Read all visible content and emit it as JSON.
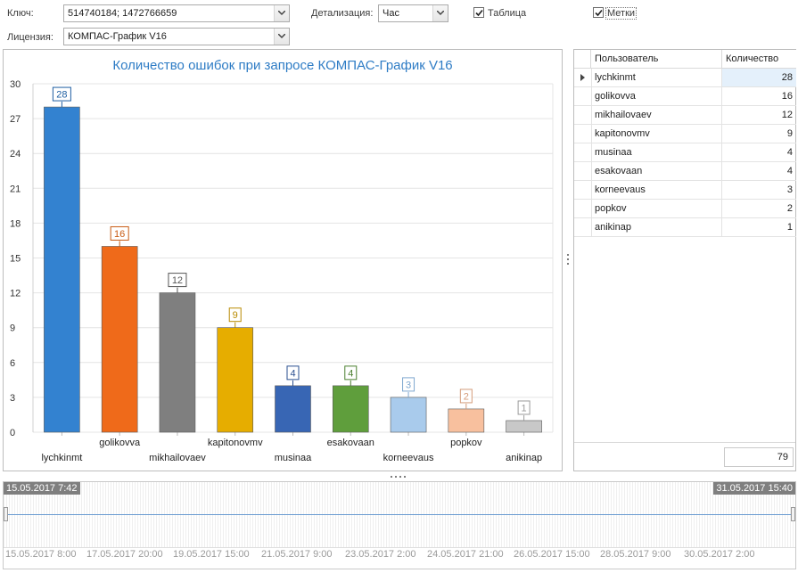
{
  "filters": {
    "key_label": "Ключ:",
    "key_value": "514740184; 1472766659",
    "detail_label": "Детализация:",
    "detail_value": "Час",
    "table_label": "Таблица",
    "table_checked": true,
    "marks_label": "Метки",
    "marks_checked": true,
    "license_label": "Лицензия:",
    "license_value": "КОМПАС-График V16"
  },
  "chart_data": {
    "type": "bar",
    "title": "Количество ошибок при запросе КОМПАС-График V16",
    "categories": [
      "lychkinmt",
      "golikovva",
      "mikhailovaev",
      "kapitonovmv",
      "musinaa",
      "esakovaan",
      "korneevaus",
      "popkov",
      "anikinap"
    ],
    "values": [
      28,
      16,
      12,
      9,
      4,
      4,
      3,
      2,
      1
    ],
    "colors": [
      "#3382d0",
      "#ef6a1a",
      "#7f7f7f",
      "#e6ad00",
      "#3866b4",
      "#5f9e3c",
      "#a9cbec",
      "#f8c09e",
      "#c8c8c8"
    ],
    "label_colors": [
      "#1f5fa3",
      "#c85a12",
      "#555555",
      "#b88a00",
      "#2a4f8f",
      "#4a7e2e",
      "#7ea7cf",
      "#d49c7a",
      "#9a9a9a"
    ],
    "ylim": [
      0,
      30
    ],
    "yticks": [
      "0",
      "3",
      "6",
      "9",
      "12",
      "15",
      "18",
      "21",
      "24",
      "27",
      "30"
    ],
    "grid": true,
    "data_labels": true,
    "legend": "none"
  },
  "table": {
    "columns": [
      "Пользователь",
      "Количество"
    ],
    "rows": [
      {
        "user": "lychkinmt",
        "count": "28"
      },
      {
        "user": "golikovva",
        "count": "16"
      },
      {
        "user": "mikhailovaev",
        "count": "12"
      },
      {
        "user": "kapitonovmv",
        "count": "9"
      },
      {
        "user": "musinaa",
        "count": "4"
      },
      {
        "user": "esakovaan",
        "count": "4"
      },
      {
        "user": "korneevaus",
        "count": "3"
      },
      {
        "user": "popkov",
        "count": "2"
      },
      {
        "user": "anikinap",
        "count": "1"
      }
    ],
    "selected_row": 0,
    "total": "79"
  },
  "timeline": {
    "range_start": "15.05.2017 7:42",
    "range_end": "31.05.2017 15:40",
    "dates": [
      "15.05.2017 8:00",
      "17.05.2017 20:00",
      "19.05.2017 15:00",
      "21.05.2017 9:00",
      "23.05.2017 2:00",
      "24.05.2017 21:00",
      "26.05.2017 15:00",
      "28.05.2017 9:00",
      "30.05.2017 2:00"
    ]
  },
  "icons": {
    "dropdown": "chevron-down-icon",
    "checkbox": "check-icon",
    "splitter": "splitter-grip-icon",
    "row_indicator": "row-pointer-icon"
  }
}
